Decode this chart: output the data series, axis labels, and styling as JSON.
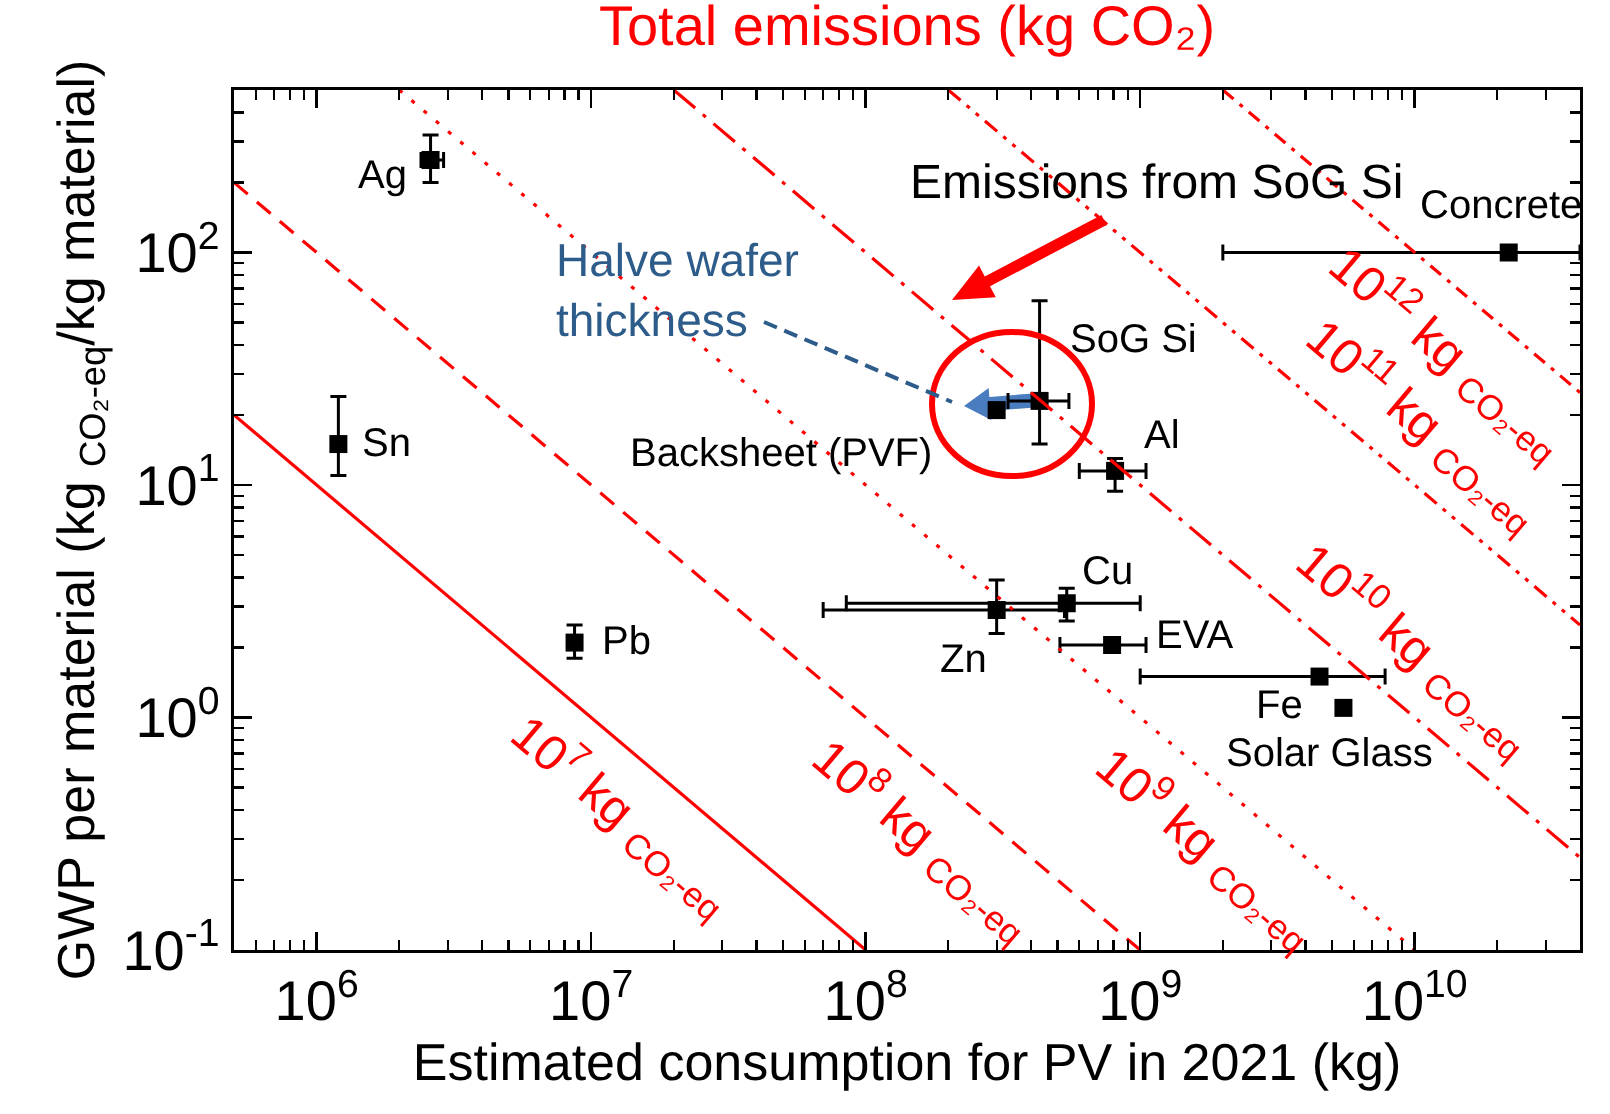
{
  "chart_data": {
    "type": "scatter",
    "title": "Total emissions (kg CO₂)",
    "xlabel": "Estimated consumption for PV in 2021 (kg)",
    "ylabel": "GWP per material (kg $_{CO₂-eq}$/kg material)",
    "log": "xy",
    "xlim": [
      500000.0,
      40000000000.0
    ],
    "ylim": [
      0.1,
      500
    ],
    "xticks": [
      {
        "value": 600000.0,
        "label": null
      },
      {
        "value": 700000.0,
        "label": null
      },
      {
        "value": 800000.0,
        "label": null
      },
      {
        "value": 900000.0,
        "label": null
      },
      {
        "value": 1000000.0,
        "label": "10$^{6}$"
      },
      {
        "value": 2000000.0,
        "label": null
      },
      {
        "value": 3000000.0,
        "label": null
      },
      {
        "value": 4000000.0,
        "label": null
      },
      {
        "value": 5000000.0,
        "label": null
      },
      {
        "value": 6000000.0,
        "label": null
      },
      {
        "value": 7000000.0,
        "label": null
      },
      {
        "value": 8000000.0,
        "label": null
      },
      {
        "value": 9000000.0,
        "label": null
      },
      {
        "value": 10000000.0,
        "label": "10$^{7}$"
      },
      {
        "value": 20000000.0,
        "label": null
      },
      {
        "value": 30000000.0,
        "label": null
      },
      {
        "value": 40000000.0,
        "label": null
      },
      {
        "value": 50000000.0,
        "label": null
      },
      {
        "value": 60000000.0,
        "label": null
      },
      {
        "value": 70000000.0,
        "label": null
      },
      {
        "value": 80000000.0,
        "label": null
      },
      {
        "value": 90000000.0,
        "label": null
      },
      {
        "value": 100000000.0,
        "label": "10$^{8}$"
      },
      {
        "value": 200000000.0,
        "label": null
      },
      {
        "value": 300000000.0,
        "label": null
      },
      {
        "value": 400000000.0,
        "label": null
      },
      {
        "value": 500000000.0,
        "label": null
      },
      {
        "value": 600000000.0,
        "label": null
      },
      {
        "value": 700000000.0,
        "label": null
      },
      {
        "value": 800000000.0,
        "label": null
      },
      {
        "value": 900000000.0,
        "label": null
      },
      {
        "value": 1000000000.0,
        "label": "10$^{9}$"
      },
      {
        "value": 2000000000.0,
        "label": null
      },
      {
        "value": 3000000000.0,
        "label": null
      },
      {
        "value": 4000000000.0,
        "label": null
      },
      {
        "value": 5000000000.0,
        "label": null
      },
      {
        "value": 6000000000.0,
        "label": null
      },
      {
        "value": 7000000000.0,
        "label": null
      },
      {
        "value": 8000000000.0,
        "label": null
      },
      {
        "value": 9000000000.0,
        "label": null
      },
      {
        "value": 10000000000.0,
        "label": "10$^{10}$"
      },
      {
        "value": 20000000000.0,
        "label": null
      },
      {
        "value": 30000000000.0,
        "label": null
      }
    ],
    "yticks": [
      {
        "value": 0.1,
        "label": "10$^{-1}$"
      },
      {
        "value": 0.2,
        "label": null
      },
      {
        "value": 0.3,
        "label": null
      },
      {
        "value": 0.4,
        "label": null
      },
      {
        "value": 0.5,
        "label": null
      },
      {
        "value": 0.6,
        "label": null
      },
      {
        "value": 0.7,
        "label": null
      },
      {
        "value": 0.8,
        "label": null
      },
      {
        "value": 0.9,
        "label": null
      },
      {
        "value": 1,
        "label": "10$^{0}$"
      },
      {
        "value": 2,
        "label": null
      },
      {
        "value": 3,
        "label": null
      },
      {
        "value": 4,
        "label": null
      },
      {
        "value": 5,
        "label": null
      },
      {
        "value": 6,
        "label": null
      },
      {
        "value": 7,
        "label": null
      },
      {
        "value": 8,
        "label": null
      },
      {
        "value": 9,
        "label": null
      },
      {
        "value": 10,
        "label": "10$^{1}$"
      },
      {
        "value": 20,
        "label": null
      },
      {
        "value": 30,
        "label": null
      },
      {
        "value": 40,
        "label": null
      },
      {
        "value": 50,
        "label": null
      },
      {
        "value": 60,
        "label": null
      },
      {
        "value": 70,
        "label": null
      },
      {
        "value": 80,
        "label": null
      },
      {
        "value": 90,
        "label": null
      },
      {
        "value": 100,
        "label": "10$^{2}$"
      },
      {
        "value": 200,
        "label": null
      },
      {
        "value": 300,
        "label": null
      },
      {
        "value": 400,
        "label": null
      }
    ],
    "marker": "square",
    "series": [
      {
        "color": "#000000",
        "x": [
          2600000.0,
          1200000.0,
          8700000.0,
          300000000.0,
          430000000.0,
          300000000.0,
          540000000.0,
          790000000.0,
          810000000.0,
          4500000000.0,
          5500000000.0,
          22000000000.0
        ],
        "values": [
          250,
          15,
          2.1,
          21,
          23,
          2.9,
          3.1,
          2.05,
          11.5,
          1.5,
          1.1,
          100
        ],
        "errors": [
          [
            200,
            320
          ],
          [
            11,
            24
          ],
          [
            1.8,
            2.5
          ],
          null,
          [
            15,
            62
          ],
          [
            2.3,
            3.9
          ],
          [
            2.6,
            3.6
          ],
          null,
          [
            9.4,
            13
          ],
          null,
          null,
          null
        ],
        "xerrors": [
          [
            2400000.0,
            2900000.0
          ],
          null,
          null,
          null,
          [
            330000000.0,
            550000000.0
          ],
          [
            70000000.0,
            530000000.0
          ],
          [
            85000000.0,
            1000000000.0
          ],
          [
            510000000.0,
            1050000000.0
          ],
          [
            600000000.0,
            1050000000.0
          ],
          [
            1000000000.0,
            7800000000.0
          ],
          null,
          [
            2000000000.0,
            40000000000.0
          ]
        ]
      },
      {
        "type": "line",
        "name": "10$^{7}$ kg $_{CO₂-eq}$",
        "color": "#ff0000",
        "line_style": "solid",
        "marker": "none",
        "x": [
          500000.0,
          100000000.0
        ],
        "values": [
          20,
          0.1
        ]
      },
      {
        "type": "line",
        "name": "10$^{8}$ kg $_{CO₂-eq}$",
        "color": "#ff0000",
        "line_style": "dashed",
        "marker": "none",
        "x": [
          500000.0,
          1000000000.0
        ],
        "values": [
          200,
          0.1
        ]
      },
      {
        "type": "line",
        "name": "10$^{9}$ kg $_{CO₂-eq}$",
        "color": "#ff0000",
        "line_style": "dotted",
        "marker": "none",
        "x": [
          2000000.0,
          10000000000.0
        ],
        "values": [
          500,
          0.1
        ]
      },
      {
        "type": "line",
        "name": "10$^{10}$ kg $_{CO₂-eq}$",
        "color": "#ff0000",
        "line_style": "longdashdot",
        "marker": "none",
        "x": [
          20000000.0,
          40000000000.0
        ],
        "values": [
          500,
          0.25
        ]
      },
      {
        "type": "line",
        "name": "10$^{11}$ kg $_{CO₂-eq}$",
        "color": "#ff0000",
        "line_style": "dashdotdot",
        "marker": "none",
        "x": [
          200000000.0,
          40000000000.0
        ],
        "values": [
          500,
          2.5
        ]
      },
      {
        "type": "line",
        "name": "10$^{12}$ kg $_{CO₂-eq}$",
        "color": "#ff0000",
        "line_style": "dashdot",
        "marker": "none",
        "x": [
          2000000000.0,
          40000000000.0
        ],
        "values": [
          500,
          25
        ]
      }
    ],
    "annotations": [
      {
        "text": "Ag",
        "x": 2600000.0,
        "y": 250
      },
      {
        "text": "Sn",
        "x": 1200000.0,
        "y": 15
      },
      {
        "text": "Pb",
        "x": 8700000.0,
        "y": 2.1
      },
      {
        "text": "Backsheet (PVF)",
        "x": 300000000.0,
        "y": 21
      },
      {
        "text": "SoG Si",
        "x": 430000000.0,
        "y": 23
      },
      {
        "text": "Zn",
        "x": 300000000.0,
        "y": 2.9
      },
      {
        "text": "Cu",
        "x": 540000000.0,
        "y": 3.1
      },
      {
        "text": "EVA",
        "x": 790000000.0,
        "y": 2.05
      },
      {
        "text": "Al",
        "x": 810000000.0,
        "y": 11.5
      },
      {
        "text": "Fe",
        "x": 4500000000.0,
        "y": 1.5
      },
      {
        "text": "Solar Glass",
        "x": 5500000000.0,
        "y": 1.1
      },
      {
        "text": "Concrete",
        "x": 22000000000.0,
        "y": 100
      },
      "Emissions from SoG Si",
      "Halve wafer\nthickness"
    ]
  }
}
